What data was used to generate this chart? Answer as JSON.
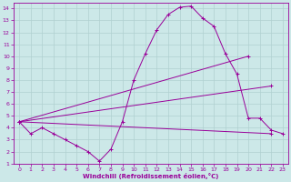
{
  "xlabel": "Windchill (Refroidissement éolien,°C)",
  "background_color": "#cce8e8",
  "grid_color": "#b0d0d0",
  "line_color": "#990099",
  "xlim": [
    -0.5,
    23.5
  ],
  "ylim": [
    1,
    14.5
  ],
  "xticks": [
    0,
    1,
    2,
    3,
    4,
    5,
    6,
    7,
    8,
    9,
    10,
    11,
    12,
    13,
    14,
    15,
    16,
    17,
    18,
    19,
    20,
    21,
    22,
    23
  ],
  "yticks": [
    1,
    2,
    3,
    4,
    5,
    6,
    7,
    8,
    9,
    10,
    11,
    12,
    13,
    14
  ],
  "curve1_x": [
    0,
    1,
    2,
    3,
    4,
    5,
    6,
    7,
    8,
    9,
    10,
    11,
    12,
    13,
    14,
    15,
    16,
    17,
    18,
    19,
    20,
    21,
    22,
    23
  ],
  "curve1_y": [
    4.5,
    3.5,
    4.0,
    3.5,
    3.0,
    2.5,
    2.0,
    1.2,
    2.2,
    4.5,
    8.0,
    10.2,
    12.2,
    13.5,
    14.1,
    14.2,
    13.2,
    12.5,
    10.2,
    8.5,
    4.8,
    4.8,
    3.8,
    3.5
  ],
  "line1_x": [
    0,
    22
  ],
  "line1_y": [
    4.5,
    3.5
  ],
  "line2_x": [
    0,
    22
  ],
  "line2_y": [
    4.5,
    7.5
  ],
  "line3_x": [
    0,
    20
  ],
  "line3_y": [
    4.5,
    10.0
  ]
}
